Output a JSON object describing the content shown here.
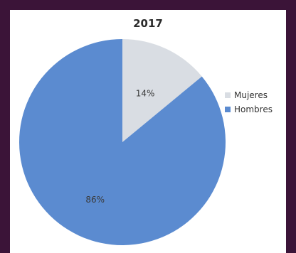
{
  "chart_data": {
    "type": "pie",
    "title": "2017",
    "slices": [
      {
        "name": "Mujeres",
        "value": 14,
        "label": "14%",
        "color": "#d9dde3"
      },
      {
        "name": "Hombres",
        "value": 86,
        "label": "86%",
        "color": "#5b8bd0"
      }
    ],
    "legend_position": "right"
  }
}
